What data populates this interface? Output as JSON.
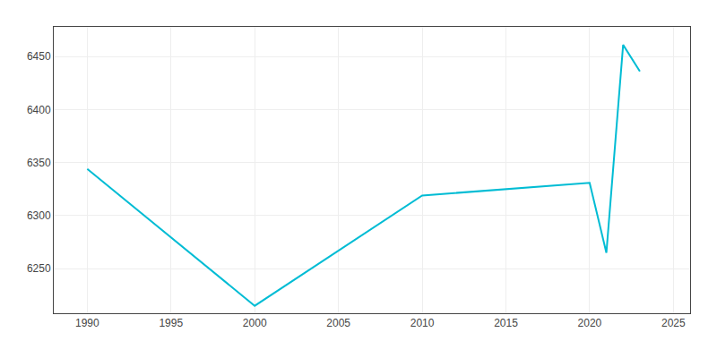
{
  "chart_data": {
    "type": "line",
    "x": [
      1990,
      2000,
      2010,
      2015,
      2020,
      2021,
      2022,
      2023
    ],
    "values": [
      6344,
      6215,
      6319,
      6325,
      6331,
      6265,
      6461,
      6436
    ],
    "color": "#00BCD4",
    "xlim": [
      1988,
      2026
    ],
    "ylim": [
      6208,
      6478
    ],
    "xticks": [
      1990,
      1995,
      2000,
      2005,
      2010,
      2015,
      2020,
      2025
    ],
    "yticks": [
      6250,
      6300,
      6350,
      6400,
      6450
    ],
    "grid": true
  }
}
